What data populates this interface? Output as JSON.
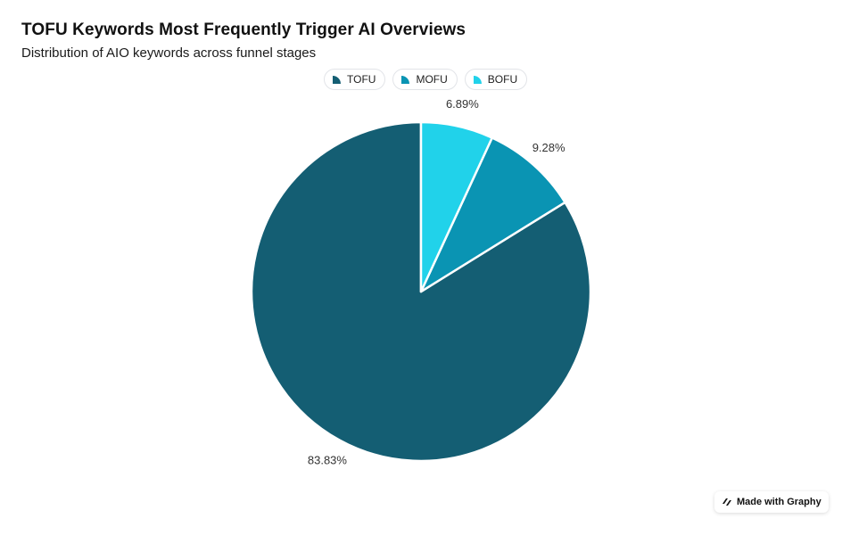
{
  "header": {
    "title": "TOFU Keywords Most Frequently Trigger AI Overviews",
    "subtitle": "Distribution of AIO keywords across funnel stages"
  },
  "legend": {
    "items": [
      {
        "label": "TOFU",
        "color": "#145e73"
      },
      {
        "label": "MOFU",
        "color": "#0a94b3"
      },
      {
        "label": "BOFU",
        "color": "#21d2ea"
      }
    ]
  },
  "chart_data": {
    "type": "pie",
    "categories": [
      "TOFU",
      "MOFU",
      "BOFU"
    ],
    "values": [
      83.83,
      9.28,
      6.89
    ],
    "labels": [
      "83.83%",
      "9.28%",
      "6.89%"
    ],
    "colors": [
      "#145e73",
      "#0a94b3",
      "#21d2ea"
    ],
    "title": "TOFU Keywords Most Frequently Trigger AI Overviews",
    "subtitle": "Distribution of AIO keywords across funnel stages",
    "legend_position": "top-center"
  },
  "footer": {
    "badge_label": "Made with Graphy",
    "badge_icon": "graphy-logo-icon"
  }
}
